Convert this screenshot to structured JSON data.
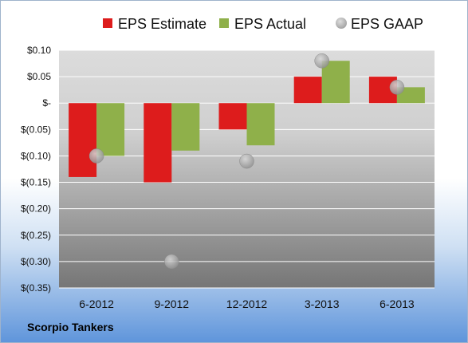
{
  "company": "Scorpio Tankers",
  "chart_data": {
    "type": "bar",
    "categories": [
      "6-2012",
      "9-2012",
      "12-2012",
      "3-2013",
      "6-2013"
    ],
    "series": [
      {
        "name": "EPS Estimate",
        "kind": "bar",
        "color": "#dd1c1c",
        "values": [
          -0.14,
          -0.15,
          -0.05,
          0.05,
          0.05
        ]
      },
      {
        "name": "EPS Actual",
        "kind": "bar",
        "color": "#8fb04a",
        "values": [
          -0.1,
          -0.09,
          -0.08,
          0.08,
          0.03
        ]
      },
      {
        "name": "EPS GAAP",
        "kind": "point",
        "color": "#a8a8a8",
        "values": [
          -0.1,
          -0.3,
          -0.11,
          0.08,
          0.03
        ]
      }
    ],
    "ylim": [
      -0.35,
      0.1
    ],
    "yticks": [
      0.1,
      0.05,
      0.0,
      -0.05,
      -0.1,
      -0.15,
      -0.2,
      -0.25,
      -0.3,
      -0.35
    ],
    "ytick_labels": [
      "$0.10",
      "$0.05",
      "$-",
      "$(0.05)",
      "$(0.10)",
      "$(0.15)",
      "$(0.20)",
      "$(0.25)",
      "$(0.30)",
      "$(0.35)"
    ],
    "grid": true,
    "legend": "top"
  }
}
